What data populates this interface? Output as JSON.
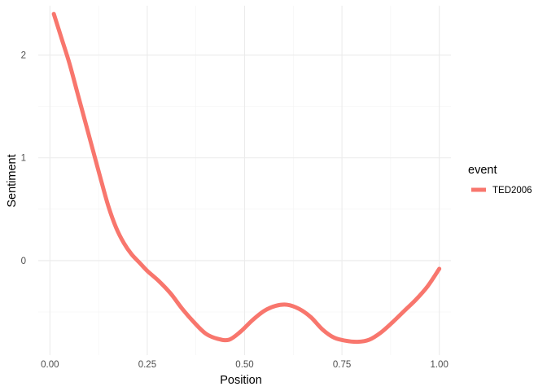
{
  "chart_data": {
    "type": "line",
    "title": "",
    "xlabel": "Position",
    "ylabel": "Sentiment",
    "xlim": [
      -0.03,
      1.03
    ],
    "ylim": [
      -0.92,
      2.48
    ],
    "x_ticks": [
      0.0,
      0.25,
      0.5,
      0.75,
      1.0
    ],
    "x_tick_labels": [
      "0.00",
      "0.25",
      "0.50",
      "0.75",
      "1.00"
    ],
    "y_ticks": [
      0,
      1,
      2
    ],
    "y_tick_labels": [
      "0",
      "1",
      "2"
    ],
    "grid": true,
    "legend": {
      "title": "event",
      "position": "right"
    },
    "series": [
      {
        "name": "TED2006",
        "color": "#F8766D",
        "x": [
          0.01,
          0.03,
          0.05,
          0.07,
          0.09,
          0.11,
          0.13,
          0.15,
          0.17,
          0.19,
          0.21,
          0.23,
          0.25,
          0.28,
          0.31,
          0.34,
          0.37,
          0.4,
          0.43,
          0.46,
          0.49,
          0.52,
          0.55,
          0.58,
          0.61,
          0.64,
          0.67,
          0.7,
          0.73,
          0.76,
          0.79,
          0.82,
          0.85,
          0.88,
          0.91,
          0.94,
          0.97,
          1.0
        ],
        "y": [
          2.4,
          2.16,
          1.92,
          1.64,
          1.36,
          1.08,
          0.8,
          0.53,
          0.32,
          0.17,
          0.06,
          -0.02,
          -0.1,
          -0.2,
          -0.32,
          -0.47,
          -0.6,
          -0.71,
          -0.76,
          -0.77,
          -0.69,
          -0.58,
          -0.49,
          -0.44,
          -0.43,
          -0.47,
          -0.55,
          -0.67,
          -0.75,
          -0.78,
          -0.79,
          -0.77,
          -0.7,
          -0.6,
          -0.49,
          -0.38,
          -0.25,
          -0.08
        ]
      }
    ]
  }
}
